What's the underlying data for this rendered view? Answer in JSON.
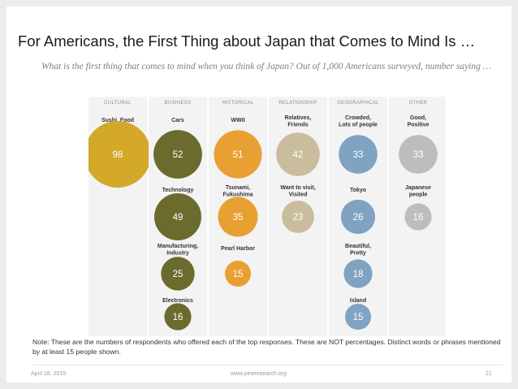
{
  "slide": {
    "title": "For Americans, the First Thing about Japan that Comes to Mind Is …",
    "subtitle": "What is the first thing that comes to mind when you think of Japan? Out of 1,000 Americans surveyed, number saying …",
    "note": "Note: These are the numbers of respondents who offered each of the top responses. These are NOT percentages. Distinct words or phrases mentioned by at least 15 people shown.",
    "footer": {
      "date": "April 28, 2015",
      "url": "www.pewresearch.org",
      "page": "21"
    }
  },
  "chart_data": {
    "type": "bubble",
    "title": "What is the first thing that comes to mind when you think of Japan?",
    "unit": "number of respondents out of 1,000",
    "categories": [
      {
        "name": "CULTURAL",
        "color": "#d4a828",
        "items": [
          {
            "label": "Sushi, Food",
            "value": 98
          }
        ]
      },
      {
        "name": "BUSINESS",
        "color": "#6b6b2e",
        "items": [
          {
            "label": "Cars",
            "value": 52
          },
          {
            "label": "Technology",
            "value": 49
          },
          {
            "label": "Manufacturing, Industry",
            "value": 25
          },
          {
            "label": "Electronics",
            "value": 16
          }
        ]
      },
      {
        "name": "HISTORICAL",
        "color": "#e8a032",
        "items": [
          {
            "label": "WWII",
            "value": 51
          },
          {
            "label": "Tsunami, Fukushima",
            "value": 35
          },
          {
            "label": "Pearl Harbor",
            "value": 15
          }
        ]
      },
      {
        "name": "RELATIONSHIP",
        "color": "#c9bd9e",
        "items": [
          {
            "label": "Relatives, Friends",
            "value": 42
          },
          {
            "label": "Want to visit, Visited",
            "value": 23
          }
        ]
      },
      {
        "name": "GEOGRAPHICAL",
        "color": "#7fa3c0",
        "items": [
          {
            "label": "Crowded, Lots of people",
            "value": 33
          },
          {
            "label": "Tokyo",
            "value": 26
          },
          {
            "label": "Beautiful, Pretty",
            "value": 18
          },
          {
            "label": "Island",
            "value": 15
          }
        ]
      },
      {
        "name": "OTHER",
        "color": "#bdbdbd",
        "items": [
          {
            "label": "Good, Positive",
            "value": 33
          },
          {
            "label": "Japanese people",
            "value": 16
          }
        ]
      }
    ]
  }
}
